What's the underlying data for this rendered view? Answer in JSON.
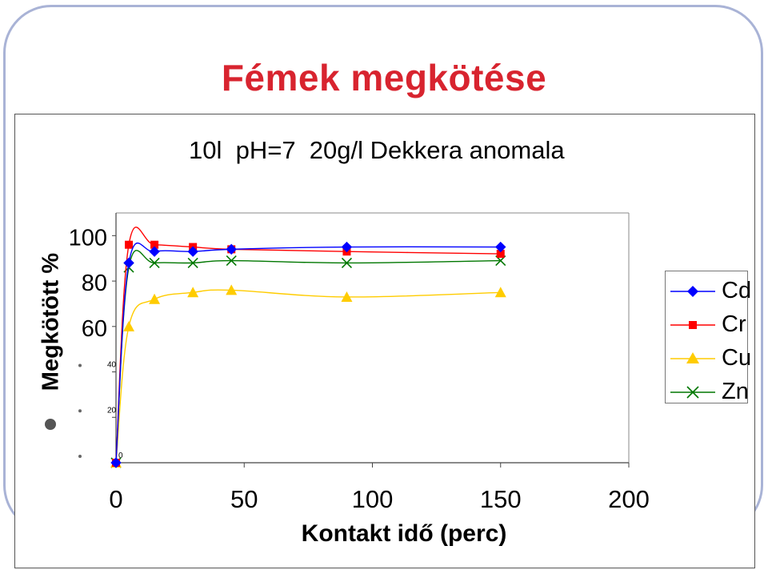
{
  "slide": {
    "title": "Fémek megkötése"
  },
  "chart_data": {
    "type": "line",
    "title": "10l  pH=7  20g/l Dekkera anomala",
    "xlabel": "Kontakt idő (perc)",
    "ylabel": "Megkötött %",
    "xlim": [
      0,
      200
    ],
    "ylim": [
      0,
      110
    ],
    "x_ticks": [
      "0",
      "50",
      "100",
      "150",
      "200"
    ],
    "y_ticks_large": [
      "100",
      "80",
      "60"
    ],
    "y_ticks_small": [
      "40",
      "20",
      "0"
    ],
    "grid": false,
    "legend_position": "right",
    "series": [
      {
        "name": "Cd",
        "color": "#0000ff",
        "marker": "diamond",
        "x": [
          0,
          5,
          15,
          30,
          45,
          90,
          150
        ],
        "y": [
          0,
          88,
          93,
          93,
          94,
          95,
          95
        ]
      },
      {
        "name": "Cr",
        "color": "#ff0000",
        "marker": "square",
        "x": [
          0,
          5,
          15,
          30,
          45,
          90,
          150
        ],
        "y": [
          0,
          96,
          96,
          95,
          94,
          93,
          92
        ]
      },
      {
        "name": "Cu",
        "color": "#ffcc00",
        "marker": "triangle",
        "x": [
          0,
          5,
          15,
          30,
          45,
          90,
          150
        ],
        "y": [
          0,
          60,
          72,
          75,
          76,
          73,
          75
        ]
      },
      {
        "name": "Zn",
        "color": "#007700",
        "marker": "x",
        "x": [
          0,
          5,
          15,
          30,
          45,
          90,
          150
        ],
        "y": [
          0,
          86,
          88,
          88,
          89,
          88,
          89
        ]
      }
    ]
  }
}
